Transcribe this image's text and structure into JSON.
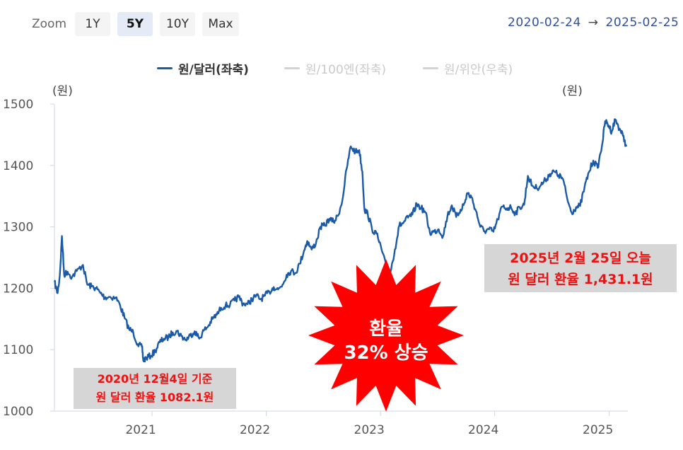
{
  "zoom": {
    "label": "Zoom",
    "buttons": [
      "1Y",
      "5Y",
      "10Y",
      "Max"
    ],
    "active": "5Y"
  },
  "date_range": {
    "from": "2020-02-24",
    "arrow": "→",
    "to": "2025-02-25"
  },
  "legend": [
    {
      "label": "원/달러(좌축)",
      "active": true
    },
    {
      "label": "원/100엔(좌축)",
      "active": false
    },
    {
      "label": "원/위안(우축)",
      "active": false
    }
  ],
  "colors": {
    "series": "#1a5aa8",
    "burst": "#ff0000",
    "callout_text": "#ee1111",
    "callout_bg": "#d6d6d6"
  },
  "annotations": {
    "low": {
      "line1": "2020년 12월4일 기준",
      "line2": "원 달러 환율 1082.1원"
    },
    "today": {
      "line1": "2025년 2월 25일 오늘",
      "line2": "원 달러 환율 1,431.1원"
    },
    "burst": {
      "line1": "환율",
      "line2": "32% 상승"
    }
  },
  "chart_data": {
    "type": "line",
    "title": "",
    "left_unit": "(원)",
    "right_unit": "(원)",
    "ylim": [
      1000,
      1500
    ],
    "y_ticks": [
      1000,
      1100,
      1200,
      1300,
      1400,
      1500
    ],
    "x_ticks": [
      "2021",
      "2022",
      "2023",
      "2024",
      "2025"
    ],
    "xlim": [
      "2020-02-24",
      "2025-02-25"
    ],
    "grid": false,
    "legend_position": "top-center",
    "series": [
      {
        "name": "원/달러(좌축)",
        "x": [
          "2020-02-24",
          "2020-03-05",
          "2020-03-12",
          "2020-03-19",
          "2020-03-26",
          "2020-04-06",
          "2020-04-20",
          "2020-05-05",
          "2020-05-25",
          "2020-06-08",
          "2020-06-22",
          "2020-07-06",
          "2020-07-20",
          "2020-08-03",
          "2020-08-17",
          "2020-09-07",
          "2020-09-21",
          "2020-10-05",
          "2020-10-19",
          "2020-11-02",
          "2020-11-16",
          "2020-11-30",
          "2020-12-04",
          "2020-12-14",
          "2020-12-28",
          "2021-01-11",
          "2021-01-25",
          "2021-02-08",
          "2021-02-22",
          "2021-03-08",
          "2021-03-22",
          "2021-04-05",
          "2021-04-19",
          "2021-05-03",
          "2021-05-17",
          "2021-06-01",
          "2021-06-15",
          "2021-06-29",
          "2021-07-13",
          "2021-07-27",
          "2021-08-10",
          "2021-08-24",
          "2021-09-07",
          "2021-09-21",
          "2021-10-05",
          "2021-10-19",
          "2021-11-02",
          "2021-11-16",
          "2021-11-30",
          "2021-12-14",
          "2021-12-28",
          "2022-01-11",
          "2022-01-25",
          "2022-02-08",
          "2022-02-22",
          "2022-03-07",
          "2022-03-21",
          "2022-04-04",
          "2022-04-18",
          "2022-05-02",
          "2022-05-12",
          "2022-05-26",
          "2022-06-09",
          "2022-06-23",
          "2022-07-07",
          "2022-07-21",
          "2022-08-04",
          "2022-08-18",
          "2022-09-01",
          "2022-09-15",
          "2022-09-28",
          "2022-10-13",
          "2022-10-25",
          "2022-11-04",
          "2022-11-11",
          "2022-11-21",
          "2022-12-05",
          "2022-12-19",
          "2023-01-05",
          "2023-01-19",
          "2023-02-02",
          "2023-02-16",
          "2023-03-02",
          "2023-03-16",
          "2023-03-30",
          "2023-04-13",
          "2023-04-27",
          "2023-05-11",
          "2023-05-25",
          "2023-06-08",
          "2023-06-22",
          "2023-07-06",
          "2023-07-20",
          "2023-08-03",
          "2023-08-17",
          "2023-08-31",
          "2023-09-14",
          "2023-09-28",
          "2023-10-05",
          "2023-10-19",
          "2023-11-02",
          "2023-11-16",
          "2023-11-30",
          "2023-12-14",
          "2023-12-28",
          "2024-01-11",
          "2024-01-25",
          "2024-02-08",
          "2024-02-22",
          "2024-03-07",
          "2024-03-21",
          "2024-04-04",
          "2024-04-16",
          "2024-04-30",
          "2024-05-14",
          "2024-05-28",
          "2024-06-11",
          "2024-06-25",
          "2024-07-09",
          "2024-07-23",
          "2024-08-06",
          "2024-08-20",
          "2024-09-03",
          "2024-09-17",
          "2024-09-30",
          "2024-10-14",
          "2024-10-28",
          "2024-11-11",
          "2024-11-25",
          "2024-12-09",
          "2024-12-19",
          "2024-12-30",
          "2025-01-09",
          "2025-01-20",
          "2025-02-03",
          "2025-02-14",
          "2025-02-25"
        ],
        "y": [
          1210,
          1192,
          1220,
          1285,
          1222,
          1227,
          1218,
          1228,
          1238,
          1206,
          1203,
          1200,
          1192,
          1185,
          1186,
          1185,
          1172,
          1152,
          1134,
          1128,
          1109,
          1104,
          1082,
          1087,
          1090,
          1098,
          1112,
          1118,
          1120,
          1128,
          1130,
          1122,
          1116,
          1123,
          1130,
          1118,
          1131,
          1138,
          1150,
          1157,
          1168,
          1172,
          1173,
          1180,
          1186,
          1175,
          1174,
          1182,
          1188,
          1182,
          1188,
          1194,
          1202,
          1198,
          1206,
          1222,
          1228,
          1225,
          1240,
          1262,
          1277,
          1263,
          1274,
          1300,
          1302,
          1313,
          1308,
          1318,
          1343,
          1395,
          1431,
          1422,
          1425,
          1390,
          1327,
          1322,
          1296,
          1289,
          1262,
          1235,
          1227,
          1263,
          1302,
          1307,
          1315,
          1320,
          1337,
          1331,
          1323,
          1290,
          1292,
          1296,
          1285,
          1318,
          1335,
          1316,
          1328,
          1340,
          1355,
          1348,
          1326,
          1300,
          1293,
          1296,
          1292,
          1312,
          1333,
          1330,
          1332,
          1322,
          1332,
          1336,
          1383,
          1367,
          1363,
          1368,
          1376,
          1386,
          1390,
          1384,
          1378,
          1345,
          1323,
          1332,
          1334,
          1364,
          1389,
          1408,
          1396,
          1433,
          1472,
          1465,
          1455,
          1475,
          1460,
          1448,
          1431
        ]
      }
    ]
  }
}
